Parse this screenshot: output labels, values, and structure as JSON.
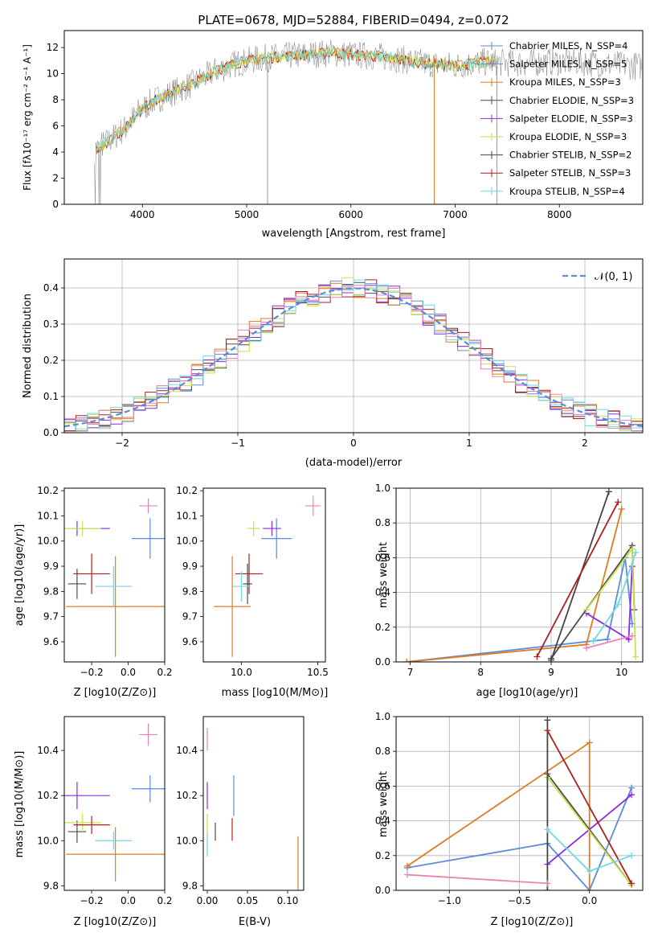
{
  "colors": {
    "chab_miles": "#5b8bdb",
    "salp_miles": "#6f7fd6",
    "krou_miles": "#e07b22",
    "chab_elodie": "#4d4d4d",
    "salp_elodie": "#8a2be2",
    "krou_elodie": "#c8e04a",
    "chab_stelib": "#444444",
    "salp_stelib": "#b01e1e",
    "krou_stelib": "#6fd8e0",
    "pink": "#e884b8",
    "gray_data": "#808080",
    "normal": "#5b8bdb"
  },
  "chart_data": [
    {
      "type": "line",
      "title": "PLATE=0678, MJD=52884, FIBERID=0494, z=0.072",
      "xlabel": "wavelength [Angstrom, rest frame]",
      "ylabel": "Flux [fλ10⁻¹⁷ erg cm⁻² s⁻¹ A⁻¹]",
      "xlim": [
        3250,
        8800
      ],
      "ylim": [
        0,
        13.3
      ],
      "xticks": [
        "4000",
        "5000",
        "6000",
        "7000",
        "8000"
      ],
      "yticks": [
        "0",
        "2",
        "4",
        "6",
        "8",
        "10",
        "12"
      ],
      "legend_position": "top-right",
      "legend": [
        "Chabrier MILES, N_SSP=4",
        "Salpeter MILES, N_SSP=5",
        "Kroupa MILES, N_SSP=3",
        "Chabrier ELODIE, N_SSP=3",
        "Salpeter ELODIE, N_SSP=3",
        "Kroupa ELODIE, N_SSP=3",
        "Chabrier STELIB, N_SSP=2",
        "Salpeter STELIB, N_SSP=3",
        "Kroupa STELIB, N_SSP=4"
      ],
      "continuum": {
        "x": [
          3550,
          3700,
          3850,
          3950,
          4100,
          4300,
          4500,
          4700,
          4900,
          5100,
          5300,
          5500,
          5800,
          6100,
          6400,
          6700,
          7000,
          7300,
          7600,
          7900,
          8200,
          8500,
          8700
        ],
        "y": [
          4.2,
          5.0,
          5.9,
          7.0,
          7.9,
          8.6,
          9.3,
          10.2,
          10.8,
          11.1,
          11.3,
          11.4,
          11.6,
          11.4,
          11.2,
          10.8,
          10.6,
          10.9,
          10.8,
          10.9,
          10.9,
          10.7,
          10.6
        ]
      }
    },
    {
      "type": "bar",
      "xlabel": "(data-model)/error",
      "ylabel": "Normed distribution",
      "xlim": [
        -2.5,
        2.5
      ],
      "ylim": [
        0,
        0.48
      ],
      "xticks": [
        "−2",
        "−1",
        "0",
        "1",
        "2"
      ],
      "yticks": [
        "0.0",
        "0.1",
        "0.2",
        "0.3",
        "0.4"
      ],
      "legend_position": "top-right",
      "legend": [
        "𝒩(0, 1)"
      ],
      "bin_width": 0.1
    },
    {
      "type": "scatter",
      "xlabel": "Z [log10(Z/Z⊙)]",
      "ylabel": "age  [log10(age/yr)]",
      "xlim": [
        -0.35,
        0.2
      ],
      "ylim": [
        9.52,
        10.21
      ],
      "xticks": [
        "−0.2",
        "0.0",
        "0.2"
      ],
      "yticks": [
        "9.6",
        "9.7",
        "9.8",
        "9.9",
        "10.0",
        "10.1",
        "10.2"
      ],
      "points": [
        {
          "c": "chab_miles",
          "x": 0.12,
          "y": 10.01,
          "xe": 0.1,
          "ye": 0.08
        },
        {
          "c": "krou_miles",
          "x": -0.07,
          "y": 9.74,
          "xe": 0.27,
          "ye": 0.2
        },
        {
          "c": "chab_elodie",
          "x": -0.28,
          "y": 9.83,
          "xe": 0.05,
          "ye": 0.06
        },
        {
          "c": "salp_elodie",
          "x": -0.28,
          "y": 10.05,
          "xe": 0.18,
          "ye": 0.03
        },
        {
          "c": "krou_elodie",
          "x": -0.25,
          "y": 10.05,
          "xe": 0.1,
          "ye": 0.03
        },
        {
          "c": "salp_stelib",
          "x": -0.2,
          "y": 9.87,
          "xe": 0.1,
          "ye": 0.08
        },
        {
          "c": "krou_stelib",
          "x": -0.08,
          "y": 9.82,
          "xe": 0.1,
          "ye": 0.08
        },
        {
          "c": "pink",
          "x": 0.11,
          "y": 10.14,
          "xe": 0.05,
          "ye": 0.03
        }
      ]
    },
    {
      "type": "scatter",
      "xlabel": "mass [log10(M/M⊙)]",
      "ylabel": "",
      "xlim": [
        9.75,
        10.55
      ],
      "ylim": [
        9.52,
        10.21
      ],
      "xticks": [
        "10.0",
        "10.5"
      ],
      "yticks": [
        "9.6",
        "9.7",
        "9.8",
        "9.9",
        "10.0",
        "10.1",
        "10.2"
      ],
      "points": [
        {
          "c": "chab_miles",
          "x": 10.23,
          "y": 10.01,
          "xe": 0.1,
          "ye": 0.08
        },
        {
          "c": "krou_miles",
          "x": 9.94,
          "y": 9.74,
          "xe": 0.12,
          "ye": 0.2
        },
        {
          "c": "chab_elodie",
          "x": 10.04,
          "y": 9.83,
          "xe": 0.03,
          "ye": 0.08
        },
        {
          "c": "salp_elodie",
          "x": 10.2,
          "y": 10.05,
          "xe": 0.06,
          "ye": 0.03
        },
        {
          "c": "krou_elodie",
          "x": 10.08,
          "y": 10.05,
          "xe": 0.04,
          "ye": 0.03
        },
        {
          "c": "salp_stelib",
          "x": 10.05,
          "y": 9.87,
          "xe": 0.09,
          "ye": 0.08
        },
        {
          "c": "krou_stelib",
          "x": 10.0,
          "y": 9.82,
          "xe": 0.06,
          "ye": 0.06
        },
        {
          "c": "pink",
          "x": 10.47,
          "y": 10.14,
          "xe": 0.05,
          "ye": 0.04
        }
      ]
    },
    {
      "type": "line",
      "xlabel": "age  [log10(age/yr)]",
      "ylabel": "mass weight",
      "xlim": [
        6.8,
        10.3
      ],
      "ylim": [
        0,
        1.0
      ],
      "xticks": [
        "7",
        "8",
        "9",
        "10"
      ],
      "yticks": [
        "0.0",
        "0.2",
        "0.4",
        "0.6",
        "0.8",
        "1.0"
      ],
      "series": [
        {
          "c": "chab_miles",
          "x": [
            6.95,
            9.8,
            10.05,
            10.15
          ],
          "y": [
            0.0,
            0.13,
            0.6,
            0.22
          ]
        },
        {
          "c": "krou_miles",
          "x": [
            6.95,
            9.5,
            10.0
          ],
          "y": [
            0.0,
            0.1,
            0.88
          ]
        },
        {
          "c": "chab_elodie",
          "x": [
            9.0,
            10.15,
            10.18
          ],
          "y": [
            0.02,
            0.67,
            0.3
          ]
        },
        {
          "c": "salp_elodie",
          "x": [
            9.5,
            10.1,
            10.15
          ],
          "y": [
            0.28,
            0.13,
            0.55
          ]
        },
        {
          "c": "krou_elodie",
          "x": [
            9.5,
            10.15,
            10.2
          ],
          "y": [
            0.3,
            0.65,
            0.03
          ]
        },
        {
          "c": "chab_stelib",
          "x": [
            9.0,
            9.82
          ],
          "y": [
            0.01,
            0.98
          ]
        },
        {
          "c": "salp_stelib",
          "x": [
            8.8,
            9.95
          ],
          "y": [
            0.03,
            0.92
          ]
        },
        {
          "c": "krou_stelib",
          "x": [
            9.6,
            9.95,
            10.2
          ],
          "y": [
            0.12,
            0.33,
            0.63
          ]
        },
        {
          "c": "pink",
          "x": [
            9.5,
            10.15
          ],
          "y": [
            0.08,
            0.15
          ]
        }
      ]
    },
    {
      "type": "scatter",
      "xlabel": "Z [log10(Z/Z⊙)]",
      "ylabel": "mass [log10(M/M⊙)]",
      "xlim": [
        -0.35,
        0.2
      ],
      "ylim": [
        9.78,
        10.55
      ],
      "xticks": [
        "−0.2",
        "0.0",
        "0.2"
      ],
      "yticks": [
        "9.8",
        "10.0",
        "10.2",
        "10.4"
      ],
      "points": [
        {
          "c": "chab_miles",
          "x": 0.12,
          "y": 10.23,
          "xe": 0.1,
          "ye": 0.06
        },
        {
          "c": "krou_miles",
          "x": -0.07,
          "y": 9.94,
          "xe": 0.27,
          "ye": 0.12
        },
        {
          "c": "chab_elodie",
          "x": -0.28,
          "y": 10.04,
          "xe": 0.05,
          "ye": 0.05
        },
        {
          "c": "salp_elodie",
          "x": -0.28,
          "y": 10.2,
          "xe": 0.18,
          "ye": 0.06
        },
        {
          "c": "krou_elodie",
          "x": -0.25,
          "y": 10.08,
          "xe": 0.1,
          "ye": 0.04
        },
        {
          "c": "salp_stelib",
          "x": -0.2,
          "y": 10.07,
          "xe": 0.1,
          "ye": 0.04
        },
        {
          "c": "krou_stelib",
          "x": -0.08,
          "y": 10.0,
          "xe": 0.1,
          "ye": 0.04
        },
        {
          "c": "pink",
          "x": 0.11,
          "y": 10.47,
          "xe": 0.05,
          "ye": 0.05
        }
      ]
    },
    {
      "type": "scatter",
      "xlabel": "E(B-V)",
      "ylabel": "",
      "xlim": [
        -0.005,
        0.12
      ],
      "ylim": [
        9.78,
        10.55
      ],
      "xticks": [
        "0.00",
        "0.05",
        "0.10"
      ],
      "yticks": [
        "9.8",
        "10.0",
        "10.2",
        "10.4"
      ],
      "points": [
        {
          "c": "chab_miles",
          "x": 0.033,
          "y": 10.2,
          "xe": 0,
          "ye": 0.09
        },
        {
          "c": "krou_miles",
          "x": 0.113,
          "y": 9.9,
          "xe": 0,
          "ye": 0.12
        },
        {
          "c": "chab_elodie",
          "x": 0.01,
          "y": 10.04,
          "xe": 0,
          "ye": 0.04
        },
        {
          "c": "salp_elodie",
          "x": 0.0,
          "y": 10.2,
          "xe": 0,
          "ye": 0.06
        },
        {
          "c": "krou_elodie",
          "x": 0.0,
          "y": 10.07,
          "xe": 0,
          "ye": 0.05
        },
        {
          "c": "salp_stelib",
          "x": 0.031,
          "y": 10.05,
          "xe": 0,
          "ye": 0.05
        },
        {
          "c": "krou_stelib",
          "x": 0.0,
          "y": 9.98,
          "xe": 0,
          "ye": 0.05
        },
        {
          "c": "pink",
          "x": 0.0,
          "y": 10.45,
          "xe": 0,
          "ye": 0.05
        }
      ]
    },
    {
      "type": "line",
      "xlabel": "Z [log10(Z/Z⊙)]",
      "ylabel": "mass weight",
      "xlim": [
        -1.38,
        0.38
      ],
      "ylim": [
        0,
        1.0
      ],
      "xticks": [
        "−1.0",
        "−0.5",
        "0.0"
      ],
      "yticks": [
        "0.0",
        "0.2",
        "0.4",
        "0.6",
        "0.8",
        "1.0"
      ],
      "series": [
        {
          "c": "chab_miles",
          "x": [
            -1.3,
            -0.3,
            0.0,
            0.3
          ],
          "y": [
            0.13,
            0.27,
            0.0,
            0.59
          ]
        },
        {
          "c": "krou_miles",
          "x": [
            -1.3,
            0.0,
            0.0
          ],
          "y": [
            0.14,
            0.85,
            0.0
          ]
        },
        {
          "c": "chab_elodie",
          "x": [
            -0.3,
            0.3
          ],
          "y": [
            0.67,
            0.03
          ]
        },
        {
          "c": "salp_elodie",
          "x": [
            -0.3,
            0.3
          ],
          "y": [
            0.15,
            0.55
          ]
        },
        {
          "c": "krou_elodie",
          "x": [
            -0.3,
            0.3
          ],
          "y": [
            0.65,
            0.03
          ]
        },
        {
          "c": "chab_stelib",
          "x": [
            -0.3,
            -0.3
          ],
          "y": [
            0.0,
            0.98
          ]
        },
        {
          "c": "salp_stelib",
          "x": [
            -0.3,
            0.3
          ],
          "y": [
            0.92,
            0.04
          ]
        },
        {
          "c": "krou_stelib",
          "x": [
            -0.3,
            0.0,
            0.3
          ],
          "y": [
            0.35,
            0.11,
            0.2
          ]
        },
        {
          "c": "pink",
          "x": [
            -1.3,
            -0.3
          ],
          "y": [
            0.09,
            0.04
          ]
        }
      ]
    }
  ]
}
